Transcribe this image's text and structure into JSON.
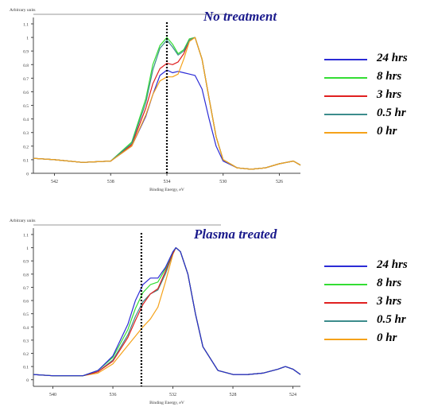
{
  "legend": [
    {
      "label": "24 hrs",
      "color": "#2b2bd6"
    },
    {
      "label": "8 hrs",
      "color": "#33dd33"
    },
    {
      "label": "3 hrs",
      "color": "#e02020"
    },
    {
      "label": "0.5 hr",
      "color": "#3c8c8c"
    },
    {
      "label": "0 hr",
      "color": "#f5a21a"
    }
  ],
  "chart_data": [
    {
      "type": "line",
      "title": "No treatment",
      "ylabel": "Arbitrary units",
      "xlabel": "Binding Energy, eV",
      "xlim": [
        543.5,
        524.5
      ],
      "ylim": [
        0,
        1.1
      ],
      "xticks": [
        {
          "v": 542,
          "t": "542"
        },
        {
          "v": 538,
          "t": "538"
        },
        {
          "v": 534,
          "t": "534"
        },
        {
          "v": 530,
          "t": "530"
        },
        {
          "v": 526,
          "t": "526"
        }
      ],
      "yticks": [
        {
          "v": 0,
          "t": "0"
        },
        {
          "v": 0.1,
          "t": "0.1"
        },
        {
          "v": 0.2,
          "t": "0.2"
        },
        {
          "v": 0.3,
          "t": "0.3"
        },
        {
          "v": 0.4,
          "t": "0.4"
        },
        {
          "v": 0.5,
          "t": "0.5"
        },
        {
          "v": 0.6,
          "t": "0.6"
        },
        {
          "v": 0.7,
          "t": "0.7"
        },
        {
          "v": 0.8,
          "t": "0.8"
        },
        {
          "v": 0.9,
          "t": "0.9"
        },
        {
          "v": 1,
          "t": "1"
        },
        {
          "v": 1.1,
          "t": "1.1"
        }
      ],
      "marker_x": 534,
      "series": [
        {
          "legend_index": 0,
          "x": [
            543.5,
            542,
            540,
            538,
            536.5,
            535.5,
            535,
            534.5,
            534,
            533.6,
            533.2,
            532.8,
            532.4,
            532,
            531.5,
            531,
            530.5,
            530,
            529,
            528,
            527,
            526,
            525.5,
            525,
            524.5
          ],
          "y": [
            0.11,
            0.1,
            0.08,
            0.09,
            0.2,
            0.42,
            0.58,
            0.72,
            0.76,
            0.74,
            0.75,
            0.74,
            0.73,
            0.72,
            0.62,
            0.4,
            0.2,
            0.09,
            0.04,
            0.03,
            0.04,
            0.07,
            0.08,
            0.09,
            0.06
          ]
        },
        {
          "legend_index": 1,
          "x": [
            543.5,
            542,
            540,
            538,
            536.5,
            535.5,
            535,
            534.5,
            534,
            533.6,
            533.2,
            532.8,
            532.4,
            532,
            531.5,
            531,
            530.5,
            530,
            529,
            528,
            527,
            526,
            525.5,
            525,
            524.5
          ],
          "y": [
            0.11,
            0.1,
            0.08,
            0.09,
            0.23,
            0.55,
            0.8,
            0.94,
            1.0,
            0.95,
            0.88,
            0.91,
            0.99,
            1.0,
            0.84,
            0.55,
            0.27,
            0.1,
            0.04,
            0.03,
            0.04,
            0.07,
            0.08,
            0.09,
            0.06
          ]
        },
        {
          "legend_index": 2,
          "x": [
            543.5,
            542,
            540,
            538,
            536.5,
            535.5,
            535,
            534.5,
            534,
            533.6,
            533.2,
            532.8,
            532.4,
            532,
            531.5,
            531,
            530.5,
            530,
            529,
            528,
            527,
            526,
            525.5,
            525,
            524.5
          ],
          "y": [
            0.11,
            0.1,
            0.08,
            0.09,
            0.21,
            0.48,
            0.66,
            0.77,
            0.81,
            0.8,
            0.82,
            0.88,
            0.98,
            1.0,
            0.84,
            0.55,
            0.27,
            0.1,
            0.04,
            0.03,
            0.04,
            0.07,
            0.08,
            0.09,
            0.06
          ]
        },
        {
          "legend_index": 3,
          "x": [
            543.5,
            542,
            540,
            538,
            536.5,
            535.5,
            535,
            534.5,
            534,
            533.6,
            533.2,
            532.8,
            532.4,
            532,
            531.5,
            531,
            530.5,
            530,
            529,
            528,
            527,
            526,
            525.5,
            525,
            524.5
          ],
          "y": [
            0.11,
            0.1,
            0.08,
            0.09,
            0.22,
            0.52,
            0.76,
            0.92,
            0.98,
            0.93,
            0.87,
            0.9,
            0.98,
            1.0,
            0.84,
            0.55,
            0.27,
            0.1,
            0.04,
            0.03,
            0.04,
            0.07,
            0.08,
            0.09,
            0.06
          ]
        },
        {
          "legend_index": 4,
          "x": [
            543.5,
            542,
            540,
            538,
            536.5,
            535.5,
            535,
            534.5,
            534,
            533.6,
            533.2,
            532.8,
            532.4,
            532,
            531.5,
            531,
            530.5,
            530,
            529,
            528,
            527,
            526,
            525.5,
            525,
            524.5
          ],
          "y": [
            0.11,
            0.1,
            0.08,
            0.09,
            0.2,
            0.43,
            0.58,
            0.68,
            0.71,
            0.71,
            0.73,
            0.84,
            0.97,
            1.0,
            0.84,
            0.55,
            0.27,
            0.1,
            0.04,
            0.03,
            0.04,
            0.07,
            0.08,
            0.09,
            0.06
          ]
        }
      ]
    },
    {
      "type": "line",
      "title": "Plasma treated",
      "ylabel": "Arbitrary units",
      "xlabel": "Binding Energy, eV",
      "xlim": [
        541.3,
        523.5
      ],
      "ylim": [
        -0.05,
        1.1
      ],
      "xticks": [
        {
          "v": 540,
          "t": "540"
        },
        {
          "v": 536,
          "t": "536"
        },
        {
          "v": 532,
          "t": "532"
        },
        {
          "v": 528,
          "t": "528"
        },
        {
          "v": 524,
          "t": "524"
        }
      ],
      "yticks": [
        {
          "v": 0,
          "t": "0"
        },
        {
          "v": 0.1,
          "t": "0.1"
        },
        {
          "v": 0.2,
          "t": "0.2"
        },
        {
          "v": 0.3,
          "t": "0.3"
        },
        {
          "v": 0.4,
          "t": "0.4"
        },
        {
          "v": 0.5,
          "t": "0.5"
        },
        {
          "v": 0.6,
          "t": "0.6"
        },
        {
          "v": 0.7,
          "t": "0.7"
        },
        {
          "v": 0.8,
          "t": "0.8"
        },
        {
          "v": 0.9,
          "t": "0.9"
        },
        {
          "v": 1,
          "t": "1"
        },
        {
          "v": 1.1,
          "t": "1.1"
        }
      ],
      "marker_x": 534.1,
      "series": [
        {
          "legend_index": 4,
          "x": [
            541.3,
            540,
            538,
            537,
            536,
            535,
            534.5,
            534,
            533.5,
            533,
            532.5,
            532,
            531.8,
            531.5,
            531,
            530.5,
            530,
            529,
            528,
            527,
            526,
            525,
            524.5,
            524,
            523.5
          ],
          "y": [
            0.04,
            0.03,
            0.03,
            0.05,
            0.12,
            0.26,
            0.33,
            0.4,
            0.46,
            0.55,
            0.74,
            0.95,
            1.0,
            0.97,
            0.8,
            0.5,
            0.25,
            0.07,
            0.04,
            0.04,
            0.05,
            0.08,
            0.1,
            0.08,
            0.04
          ]
        },
        {
          "legend_index": 3,
          "x": [
            541.3,
            540,
            538,
            537,
            536,
            535,
            534.5,
            534,
            533.5,
            533,
            532.5,
            532,
            531.8,
            531.5,
            531,
            530.5,
            530,
            529,
            528,
            527,
            526,
            525,
            524.5,
            524,
            523.5
          ],
          "y": [
            0.04,
            0.03,
            0.03,
            0.06,
            0.15,
            0.34,
            0.48,
            0.59,
            0.65,
            0.68,
            0.8,
            0.96,
            1.0,
            0.97,
            0.8,
            0.5,
            0.25,
            0.07,
            0.04,
            0.04,
            0.05,
            0.08,
            0.1,
            0.08,
            0.04
          ]
        },
        {
          "legend_index": 2,
          "x": [
            541.3,
            540,
            538,
            537,
            536,
            535,
            534.5,
            534,
            533.5,
            533,
            532.5,
            532,
            531.8,
            531.5,
            531,
            530.5,
            530,
            529,
            528,
            527,
            526,
            525,
            524.5,
            524,
            523.5
          ],
          "y": [
            0.04,
            0.03,
            0.03,
            0.06,
            0.14,
            0.32,
            0.45,
            0.57,
            0.65,
            0.69,
            0.82,
            0.96,
            1.0,
            0.97,
            0.8,
            0.5,
            0.25,
            0.07,
            0.04,
            0.04,
            0.05,
            0.08,
            0.1,
            0.08,
            0.04
          ]
        },
        {
          "legend_index": 1,
          "x": [
            541.3,
            540,
            538,
            537,
            536,
            535,
            534.5,
            534,
            533.5,
            533,
            532.5,
            532,
            531.8,
            531.5,
            531,
            530.5,
            530,
            529,
            528,
            527,
            526,
            525,
            524.5,
            524,
            523.5
          ],
          "y": [
            0.04,
            0.03,
            0.03,
            0.07,
            0.17,
            0.38,
            0.54,
            0.66,
            0.72,
            0.74,
            0.84,
            0.97,
            1.0,
            0.97,
            0.8,
            0.5,
            0.25,
            0.07,
            0.04,
            0.04,
            0.05,
            0.08,
            0.1,
            0.08,
            0.04
          ]
        },
        {
          "legend_index": 0,
          "x": [
            541.3,
            540,
            538,
            537,
            536,
            535,
            534.5,
            534,
            533.5,
            533,
            532.5,
            532,
            531.8,
            531.5,
            531,
            530.5,
            530,
            529,
            528,
            527,
            526,
            525,
            524.5,
            524,
            523.5
          ],
          "y": [
            0.04,
            0.03,
            0.03,
            0.07,
            0.18,
            0.42,
            0.6,
            0.72,
            0.77,
            0.77,
            0.85,
            0.97,
            1.0,
            0.97,
            0.8,
            0.5,
            0.25,
            0.07,
            0.04,
            0.04,
            0.05,
            0.08,
            0.1,
            0.08,
            0.04
          ]
        }
      ]
    }
  ]
}
